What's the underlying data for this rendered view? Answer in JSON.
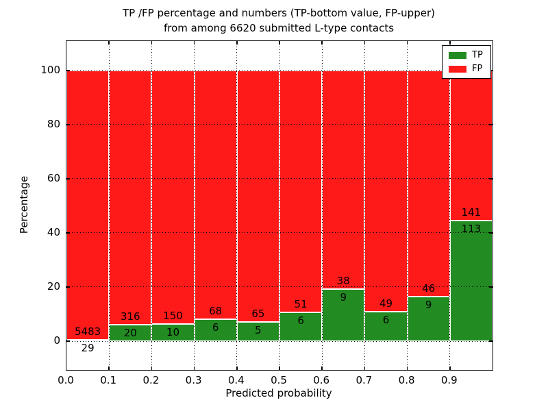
{
  "chart_data": {
    "type": "bar",
    "stacked": true,
    "title_line1": "TP /FP percentage and numbers (TP-bottom value, FP-upper)",
    "title_line2": "from among 6620 submitted L-type contacts",
    "xlabel": "Predicted probability",
    "ylabel": "Percentage",
    "categories": [
      "0.0-0.1",
      "0.1-0.2",
      "0.2-0.3",
      "0.3-0.4",
      "0.4-0.5",
      "0.5-0.6",
      "0.6-0.7",
      "0.7-0.8",
      "0.8-0.9",
      "0.9-1.0"
    ],
    "series": [
      {
        "name": "TP",
        "counts": [
          29,
          20,
          10,
          6,
          5,
          6,
          9,
          6,
          9,
          113
        ]
      },
      {
        "name": "FP",
        "counts": [
          5483,
          316,
          150,
          68,
          65,
          51,
          38,
          49,
          46,
          141
        ]
      }
    ],
    "tp_percent": [
      0.53,
      5.95,
      6.25,
      8.11,
      7.14,
      10.53,
      19.15,
      10.91,
      16.36,
      44.49
    ],
    "total_contacts": 6620,
    "x_tick_labels": [
      "0.0",
      "0.1",
      "0.2",
      "0.3",
      "0.4",
      "0.5",
      "0.6",
      "0.7",
      "0.8",
      "0.9"
    ],
    "y_tick_labels": [
      "0",
      "20",
      "40",
      "60",
      "80",
      "100"
    ],
    "y_tick_values": [
      0,
      20,
      40,
      60,
      80,
      100
    ],
    "xlim": [
      0.0,
      1.0
    ],
    "ylim": [
      -10.6,
      110.8
    ],
    "grid_style": "dotted",
    "bar_edge_color": "#ffffff",
    "legend": {
      "position": "upper right",
      "items": [
        {
          "label": "TP",
          "color": "#228b22"
        },
        {
          "label": "FP",
          "color": "#ff1a1a"
        }
      ]
    }
  }
}
